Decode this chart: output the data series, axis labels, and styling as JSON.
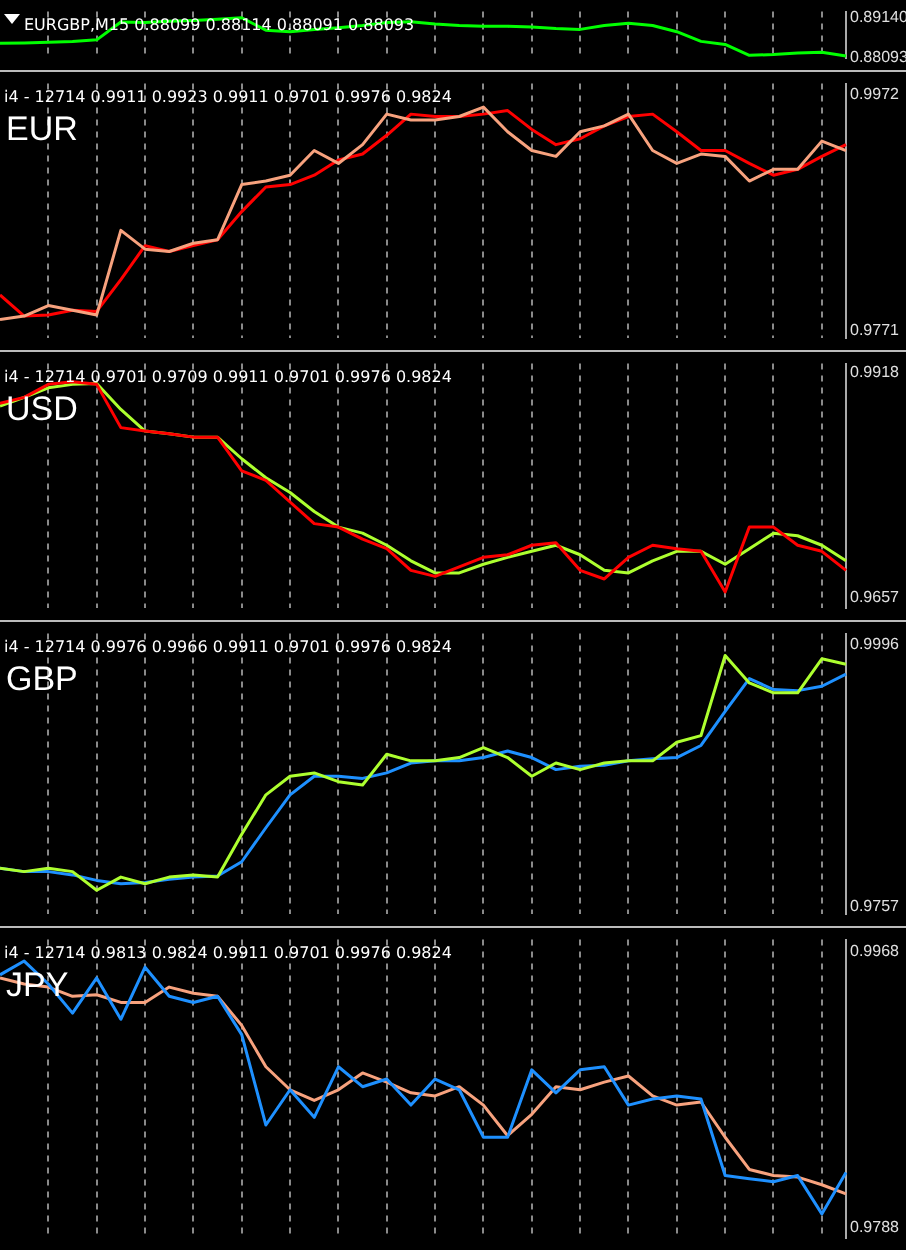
{
  "chart_data": [
    {
      "type": "line",
      "title": "EURGBP,M15 0.88099 0.88114 0.88091 0.88093",
      "marker": "none",
      "grid": "x",
      "tick_labels": "y",
      "categories": [
        null,
        null,
        null,
        null,
        null,
        null,
        null,
        null,
        null,
        null,
        null,
        null,
        null,
        null,
        null,
        null,
        null,
        null,
        null,
        null,
        null,
        null,
        null,
        null,
        null,
        null,
        null,
        null,
        null,
        null,
        null,
        null,
        null,
        null,
        null,
        null
      ],
      "ylim": [
        0.8808,
        0.8929
      ],
      "yticks": [
        {
          "value": 0.8914,
          "label": "0.89140"
        },
        {
          "value": 0.88093,
          "label": "0.88093"
        }
      ],
      "series": [
        {
          "color": "#00ff00",
          "values": [
            0.8847,
            0.8848,
            0.885,
            0.8852,
            0.8856,
            0.8902,
            0.8901,
            0.8904,
            0.8906,
            0.8909,
            0.8913,
            0.8881,
            0.8877,
            0.8883,
            0.8887,
            0.8893,
            0.8901,
            0.8903,
            0.8897,
            0.8893,
            0.8891,
            0.8891,
            0.8889,
            0.8885,
            0.8883,
            0.8893,
            0.8899,
            0.8893,
            0.8877,
            0.8852,
            0.8844,
            0.8816,
            0.8818,
            0.8822,
            0.8824,
            0.8814
          ]
        }
      ]
    },
    {
      "type": "line",
      "title": "i4 - 12714 0.9911 0.9923 0.9911 0.9701 0.9976 0.9824",
      "annotations": [
        "EUR"
      ],
      "marker": "none",
      "grid": "x",
      "tick_labels": "y",
      "categories": [
        null,
        null,
        null,
        null,
        null,
        null,
        null,
        null,
        null,
        null,
        null,
        null,
        null,
        null,
        null,
        null,
        null,
        null,
        null,
        null,
        null,
        null,
        null,
        null,
        null,
        null,
        null,
        null,
        null,
        null,
        null,
        null,
        null,
        null,
        null,
        null
      ],
      "ylim": [
        0.9764,
        0.9981
      ],
      "yticks": [
        0.9972,
        0.9771
      ],
      "series": [
        {
          "color": "#f7a27e",
          "values": [
            0.978,
            0.9783,
            0.9792,
            0.9788,
            0.9784,
            0.9856,
            0.984,
            0.9838,
            0.9845,
            0.9848,
            0.9895,
            0.9898,
            0.9903,
            0.9924,
            0.9913,
            0.9929,
            0.9955,
            0.995,
            0.995,
            0.9953,
            0.9961,
            0.994,
            0.9924,
            0.9919,
            0.994,
            0.9945,
            0.9955,
            0.9924,
            0.9913,
            0.9921,
            0.9919,
            0.9898,
            0.9908,
            0.9908,
            0.9932,
            0.9924
          ]
        },
        {
          "color": "#ff0000",
          "values": [
            0.9801,
            0.9783,
            0.9784,
            0.9788,
            0.9787,
            0.9814,
            0.9843,
            0.9838,
            0.9843,
            0.9848,
            0.9872,
            0.9893,
            0.9895,
            0.9903,
            0.9916,
            0.9921,
            0.9937,
            0.9955,
            0.9953,
            0.9953,
            0.9955,
            0.9958,
            0.9942,
            0.9929,
            0.9934,
            0.9945,
            0.9953,
            0.9955,
            0.994,
            0.9924,
            0.9924,
            0.9913,
            0.9903,
            0.9908,
            0.9919,
            0.9929
          ]
        }
      ]
    },
    {
      "type": "line",
      "title": "i4 - 12714 0.9701 0.9709 0.9911 0.9701 0.9976 0.9824",
      "annotations": [
        "USD"
      ],
      "marker": "none",
      "grid": "x",
      "tick_labels": "y",
      "categories": [
        null,
        null,
        null,
        null,
        null,
        null,
        null,
        null,
        null,
        null,
        null,
        null,
        null,
        null,
        null,
        null,
        null,
        null,
        null,
        null,
        null,
        null,
        null,
        null,
        null,
        null,
        null,
        null,
        null,
        null,
        null,
        null,
        null,
        null,
        null,
        null
      ],
      "ylim": [
        0.9645,
        0.9928
      ],
      "yticks": [
        0.9918,
        0.9657
      ],
      "series": [
        {
          "color": "#ff0000",
          "values": [
            0.9882,
            0.9889,
            0.9904,
            0.9907,
            0.9904,
            0.9854,
            0.985,
            0.9847,
            0.9843,
            0.9843,
            0.9804,
            0.9793,
            0.9768,
            0.9743,
            0.9739,
            0.9725,
            0.9714,
            0.9689,
            0.9682,
            0.9693,
            0.9704,
            0.9707,
            0.9718,
            0.9721,
            0.9689,
            0.9679,
            0.9704,
            0.9718,
            0.9714,
            0.9711,
            0.9664,
            0.9739,
            0.9739,
            0.9718,
            0.9711,
            0.9689
          ]
        },
        {
          "color": "#adff2f",
          "values": [
            0.9879,
            0.9889,
            0.99,
            0.9904,
            0.9905,
            0.9875,
            0.985,
            0.9847,
            0.9843,
            0.9843,
            0.9818,
            0.9796,
            0.9779,
            0.9757,
            0.9739,
            0.9732,
            0.9718,
            0.97,
            0.9686,
            0.9686,
            0.9696,
            0.9704,
            0.9711,
            0.9718,
            0.9707,
            0.9689,
            0.9686,
            0.97,
            0.9711,
            0.9711,
            0.9696,
            0.9714,
            0.9732,
            0.9729,
            0.9718,
            0.97
          ]
        }
      ]
    },
    {
      "type": "line",
      "title": "i4 - 12714 0.9976 0.9966 0.9911 0.9701 0.9976 0.9824",
      "annotations": [
        "GBP"
      ],
      "marker": "none",
      "grid": "x",
      "tick_labels": "y",
      "categories": [
        null,
        null,
        null,
        null,
        null,
        null,
        null,
        null,
        null,
        null,
        null,
        null,
        null,
        null,
        null,
        null,
        null,
        null,
        null,
        null,
        null,
        null,
        null,
        null,
        null,
        null,
        null,
        null,
        null,
        null,
        null,
        null,
        null,
        null,
        null,
        null
      ],
      "ylim": [
        0.975,
        1.0006
      ],
      "yticks": [
        0.9996,
        0.9757
      ],
      "series": [
        {
          "color": "#adff2f",
          "values": [
            0.9792,
            0.9789,
            0.9792,
            0.9789,
            0.9772,
            0.9784,
            0.9778,
            0.9784,
            0.9786,
            0.9784,
            0.9823,
            0.9859,
            0.9876,
            0.9879,
            0.9871,
            0.9868,
            0.9896,
            0.989,
            0.989,
            0.9893,
            0.9902,
            0.9893,
            0.9876,
            0.9888,
            0.9882,
            0.9888,
            0.989,
            0.989,
            0.9907,
            0.9913,
            0.9986,
            0.9961,
            0.9952,
            0.9952,
            0.9983,
            0.9978
          ]
        },
        {
          "color": "#1e90ff",
          "values": [
            0.9792,
            0.9789,
            0.9789,
            0.9786,
            0.9781,
            0.9778,
            0.9779,
            0.9782,
            0.9784,
            0.9785,
            0.9798,
            0.9829,
            0.9859,
            0.9876,
            0.9876,
            0.9874,
            0.9879,
            0.9888,
            0.989,
            0.989,
            0.9893,
            0.9899,
            0.9893,
            0.9882,
            0.9885,
            0.9886,
            0.989,
            0.9892,
            0.9893,
            0.9904,
            0.9935,
            0.9965,
            0.9955,
            0.9954,
            0.9958,
            0.9969
          ]
        }
      ]
    },
    {
      "type": "line",
      "title": "i4 - 12714 0.9813 0.9824 0.9911 0.9701 0.9976 0.9824",
      "annotations": [
        "JPY"
      ],
      "marker": "none",
      "grid": "x",
      "tick_labels": "y",
      "categories": [
        null,
        null,
        null,
        null,
        null,
        null,
        null,
        null,
        null,
        null,
        null,
        null,
        null,
        null,
        null,
        null,
        null,
        null,
        null,
        null,
        null,
        null,
        null,
        null,
        null,
        null,
        null,
        null,
        null,
        null,
        null,
        null,
        null,
        null,
        null,
        null
      ],
      "ylim": [
        0.9781,
        0.9976
      ],
      "yticks": [
        0.9968,
        0.9788
      ],
      "series": [
        {
          "color": "#1e90ff",
          "values": [
            0.9953,
            0.9962,
            0.9947,
            0.9928,
            0.9951,
            0.9924,
            0.9958,
            0.9939,
            0.9935,
            0.9939,
            0.9914,
            0.9855,
            0.9878,
            0.986,
            0.9893,
            0.988,
            0.9885,
            0.9868,
            0.9885,
            0.9878,
            0.9847,
            0.9847,
            0.9891,
            0.9876,
            0.9891,
            0.9893,
            0.9868,
            0.9872,
            0.9874,
            0.9872,
            0.9822,
            0.982,
            0.9818,
            0.9822,
            0.9797,
            0.9824
          ]
        },
        {
          "color": "#f7a27e",
          "values": [
            0.9951,
            0.9947,
            0.9945,
            0.9939,
            0.994,
            0.9935,
            0.9935,
            0.9945,
            0.9941,
            0.9939,
            0.992,
            0.9893,
            0.9878,
            0.9871,
            0.9878,
            0.9889,
            0.9883,
            0.9876,
            0.9874,
            0.988,
            0.9868,
            0.9848,
            0.9862,
            0.988,
            0.9878,
            0.9883,
            0.9887,
            0.9874,
            0.9868,
            0.987,
            0.9847,
            0.9826,
            0.9822,
            0.9821,
            0.9816,
            0.981
          ]
        }
      ]
    }
  ]
}
